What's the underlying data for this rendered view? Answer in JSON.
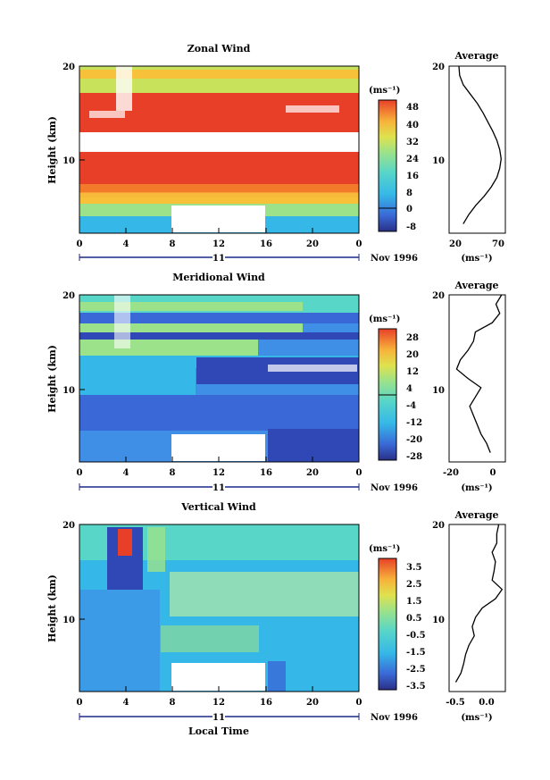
{
  "colors": {
    "contour": [
      "#2a2f86",
      "#2f48b5",
      "#3a68d6",
      "#3f8fe6",
      "#35b8e8",
      "#58d6c8",
      "#9be28a",
      "#dfe24e",
      "#f7b23a",
      "#f27a2a",
      "#e84028"
    ],
    "missing": "#ffffff"
  },
  "shared": {
    "x_ticks": [
      "0",
      "4",
      "8",
      "12",
      "16",
      "20",
      "0"
    ],
    "day_label": "11",
    "date_label": "Nov 1996",
    "y_ticks": [
      "20",
      "10"
    ],
    "ylabel": "Height (km)",
    "xlabel": "Local Time",
    "unit_label": "(ms⁻¹)",
    "unit_label_alt": "(ms⁻¹)"
  },
  "chart_data": [
    {
      "type": "heatmap",
      "title": "Zonal Wind",
      "ylabel": "Height (km)",
      "x_range": [
        0,
        24
      ],
      "y_range": [
        2,
        20
      ],
      "colorbar_ticks": [
        "48",
        "40",
        "32",
        "24",
        "16",
        "8",
        "0",
        "-8"
      ],
      "colorbar_range": [
        -8,
        48
      ],
      "gap": {
        "x": [
          8,
          16
        ],
        "y": [
          2,
          5
        ]
      },
      "average": {
        "title": "Average",
        "x_ticks": [
          "20",
          "70"
        ],
        "xlim": [
          0,
          80
        ],
        "heights": [
          3,
          4,
          5,
          6,
          7,
          8,
          9,
          10,
          11,
          12,
          13,
          14,
          15,
          16,
          17,
          18,
          19,
          20
        ],
        "values": [
          20,
          28,
          38,
          50,
          60,
          68,
          72,
          74,
          72,
          68,
          62,
          55,
          48,
          40,
          30,
          20,
          15,
          14
        ]
      }
    },
    {
      "type": "heatmap",
      "title": "Meridional Wind",
      "ylabel": "Height (km)",
      "x_range": [
        0,
        24
      ],
      "y_range": [
        2,
        20
      ],
      "colorbar_ticks": [
        "28",
        "20",
        "12",
        "4",
        "-4",
        "-12",
        "-20",
        "-28"
      ],
      "colorbar_range": [
        -28,
        28
      ],
      "gap": {
        "x": [
          8,
          16
        ],
        "y": [
          2,
          5
        ]
      },
      "average": {
        "title": "Average",
        "x_ticks": [
          "-20",
          "0"
        ],
        "xlim": [
          -25,
          5
        ],
        "heights": [
          3,
          4,
          5,
          6,
          7,
          8,
          9,
          10,
          11,
          12,
          13,
          14,
          15,
          16,
          17,
          18,
          19,
          20
        ],
        "values": [
          -3,
          -5,
          -8,
          -10,
          -12,
          -14,
          -11,
          -8,
          -15,
          -21,
          -19,
          -15,
          -12,
          -11,
          -2,
          2,
          0,
          3
        ]
      }
    },
    {
      "type": "heatmap",
      "title": "Vertical Wind",
      "ylabel": "Height (km)",
      "xlabel": "Local Time",
      "x_range": [
        0,
        24
      ],
      "y_range": [
        2,
        20
      ],
      "colorbar_ticks": [
        "3.5",
        "2.5",
        "1.5",
        "0.5",
        "-0.5",
        "-1.5",
        "-2.5",
        "-3.5"
      ],
      "colorbar_range": [
        -3.5,
        3.5
      ],
      "gap": {
        "x": [
          8,
          16
        ],
        "y": [
          2,
          5
        ]
      },
      "average": {
        "title": "Average",
        "x_ticks": [
          "-0.5",
          "0.0"
        ],
        "xlim": [
          -0.6,
          0.25
        ],
        "heights": [
          3,
          4,
          5,
          6,
          7,
          8,
          9,
          10,
          11,
          12,
          13,
          14,
          15,
          16,
          17,
          18,
          19,
          20
        ],
        "values": [
          -0.5,
          -0.42,
          -0.38,
          -0.35,
          -0.3,
          -0.22,
          -0.25,
          -0.2,
          -0.1,
          0.1,
          0.2,
          0.05,
          0.08,
          0.1,
          0.05,
          0.12,
          0.12,
          0.15
        ]
      }
    }
  ]
}
